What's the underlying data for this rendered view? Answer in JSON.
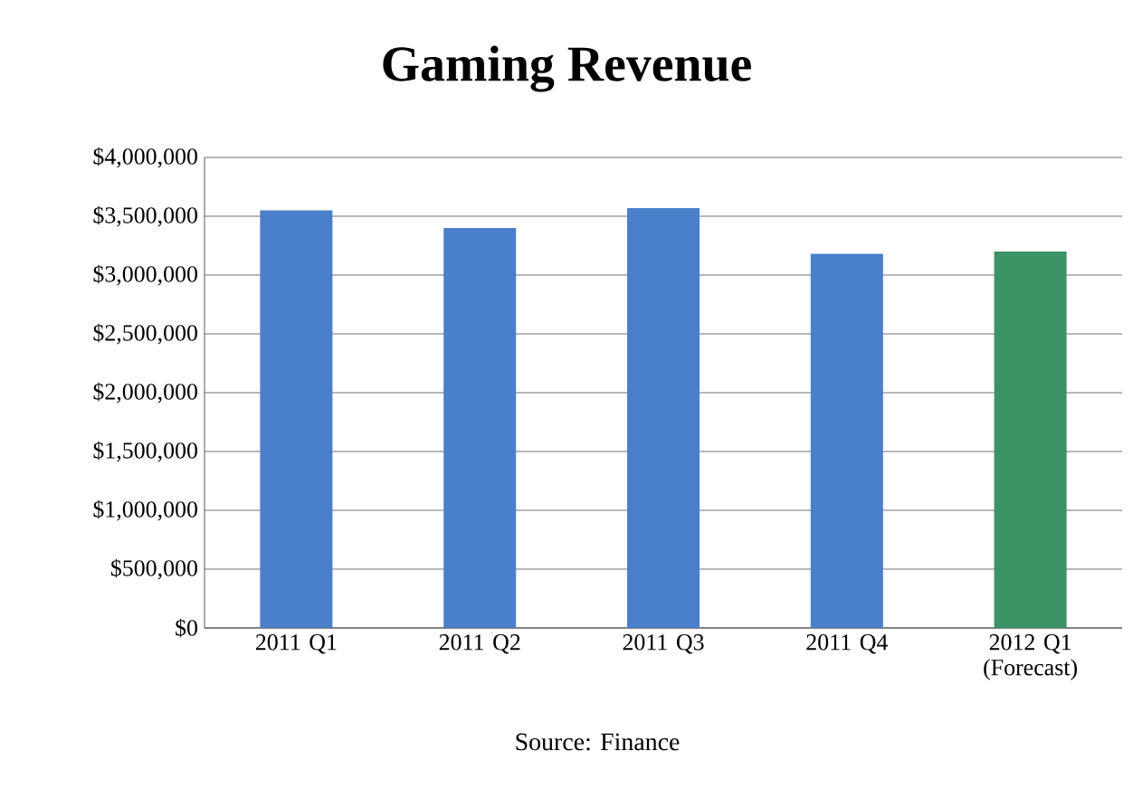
{
  "chart_data": {
    "type": "bar",
    "title": "Gaming Revenue",
    "categories": [
      "2011 Q1",
      "2011 Q2",
      "2011 Q3",
      "2011 Q4",
      "2012 Q1 (Forecast)"
    ],
    "values": [
      3550000,
      3400000,
      3570000,
      3180000,
      3200000
    ],
    "colors": [
      "#4a7fcb",
      "#4a7fcb",
      "#4a7fcb",
      "#4a7fcb",
      "#3a9265"
    ],
    "ylim": [
      0,
      4000000
    ],
    "yticks": [
      {
        "value": 0,
        "label": "$0"
      },
      {
        "value": 500000,
        "label": "$500,000"
      },
      {
        "value": 1000000,
        "label": "$1,000,000"
      },
      {
        "value": 1500000,
        "label": "$1,500,000"
      },
      {
        "value": 2000000,
        "label": "$2,000,000"
      },
      {
        "value": 2500000,
        "label": "$2,500,000"
      },
      {
        "value": 3000000,
        "label": "$3,000,000"
      },
      {
        "value": 3500000,
        "label": "$3,500,000"
      },
      {
        "value": 4000000,
        "label": "$4,000,000"
      }
    ],
    "grid": "y",
    "annotations": [
      "Source: Finance"
    ]
  }
}
